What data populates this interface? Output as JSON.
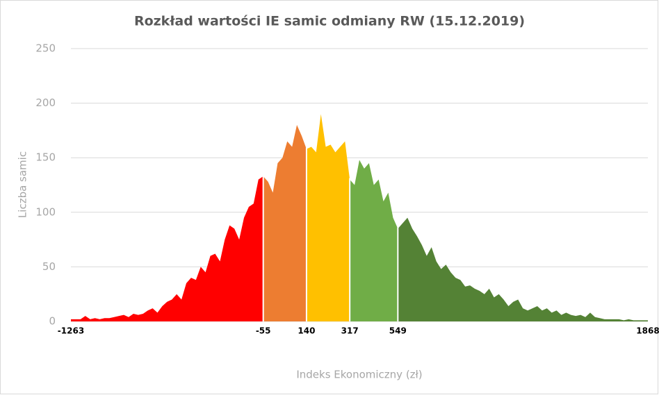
{
  "chart_data": {
    "type": "area",
    "title": "Rozkład wartości IE samic odmiany RW (15.12.2019)",
    "x_label": "Indeks Ekonomiczny (zł)",
    "y_label": "Liczba samic",
    "categories": [
      "-1263",
      null,
      null,
      null,
      null,
      null,
      null,
      null,
      null,
      null,
      null,
      null,
      null,
      null,
      null,
      null,
      null,
      null,
      null,
      null,
      null,
      null,
      null,
      null,
      null,
      null,
      null,
      null,
      null,
      null,
      null,
      null,
      null,
      null,
      null,
      null,
      null,
      null,
      null,
      null,
      "-55",
      null,
      null,
      null,
      null,
      null,
      null,
      null,
      null,
      "140",
      null,
      null,
      null,
      null,
      null,
      null,
      null,
      null,
      "317",
      null,
      null,
      null,
      null,
      null,
      null,
      null,
      null,
      null,
      "549",
      null,
      null,
      null,
      null,
      null,
      null,
      null,
      null,
      null,
      null,
      null,
      null,
      null,
      null,
      null,
      null,
      null,
      null,
      null,
      null,
      null,
      null,
      null,
      null,
      null,
      null,
      null,
      null,
      null,
      null,
      null,
      null,
      null,
      null,
      null,
      null,
      null,
      null,
      null,
      null,
      null,
      null,
      null,
      null,
      null,
      null,
      null,
      null,
      null,
      null,
      null,
      "1868"
    ],
    "values": [
      2,
      2,
      2,
      5,
      2,
      3,
      2,
      3,
      3,
      4,
      5,
      6,
      4,
      7,
      6,
      7,
      10,
      12,
      8,
      14,
      18,
      20,
      25,
      20,
      35,
      40,
      38,
      50,
      45,
      60,
      62,
      55,
      75,
      88,
      85,
      75,
      95,
      105,
      108,
      130,
      133,
      128,
      118,
      145,
      150,
      165,
      160,
      180,
      170,
      158,
      160,
      155,
      190,
      160,
      162,
      155,
      160,
      165,
      130,
      125,
      148,
      140,
      145,
      125,
      130,
      110,
      118,
      95,
      85,
      90,
      95,
      85,
      78,
      70,
      60,
      68,
      55,
      48,
      52,
      45,
      40,
      38,
      32,
      33,
      30,
      28,
      25,
      30,
      22,
      25,
      20,
      14,
      18,
      20,
      12,
      10,
      12,
      14,
      10,
      12,
      8,
      10,
      6,
      8,
      6,
      5,
      6,
      4,
      8,
      4,
      3,
      2,
      2,
      2,
      2,
      1,
      2,
      1,
      1,
      1,
      1
    ],
    "segment_colors": [
      "#ff0000",
      "#ed7d31",
      "#ffc000",
      "#70ad47",
      "#548235"
    ],
    "ylim": [
      0,
      250
    ],
    "yticks": [
      0,
      50,
      100,
      150,
      200,
      250
    ],
    "grid": true
  }
}
